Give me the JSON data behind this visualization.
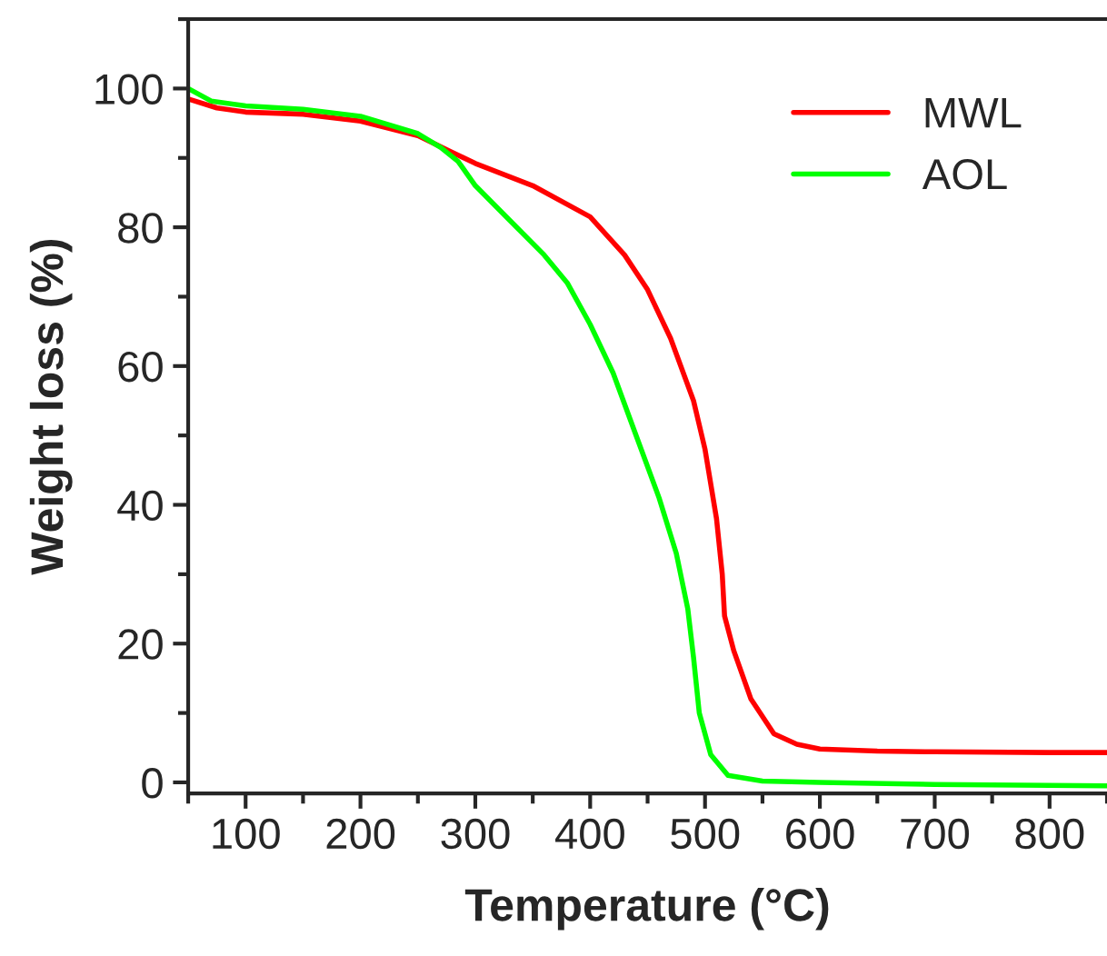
{
  "chart_data": {
    "type": "line",
    "xlabel": "Temperature (°C)",
    "ylabel": "Weight loss (%)",
    "xlim": [
      50,
      850
    ],
    "ylim": [
      -1.6,
      110
    ],
    "xticks": [
      100,
      200,
      300,
      400,
      500,
      600,
      700,
      800
    ],
    "yticks": [
      0,
      20,
      40,
      60,
      80,
      100
    ],
    "grid": false,
    "legend": "top right",
    "marker": "none",
    "line_style": "solid",
    "series": [
      {
        "name": "MWL",
        "color": "#ff0000",
        "x": [
          50,
          75,
          100,
          150,
          200,
          250,
          280,
          300,
          350,
          400,
          430,
          450,
          470,
          490,
          500,
          510,
          515,
          517,
          525,
          540,
          560,
          580,
          600,
          650,
          700,
          800,
          850
        ],
        "values": [
          98.5,
          97.2,
          96.6,
          96.3,
          95.3,
          93.2,
          90.8,
          89.2,
          86.0,
          81.5,
          76,
          71,
          64,
          55,
          48,
          38,
          30,
          24,
          19,
          12,
          7,
          5.5,
          4.8,
          4.5,
          4.4,
          4.3,
          4.3
        ]
      },
      {
        "name": "AOL",
        "color": "#00ff00",
        "x": [
          50,
          70,
          100,
          150,
          200,
          250,
          270,
          285,
          300,
          330,
          360,
          380,
          400,
          420,
          440,
          460,
          475,
          485,
          490,
          495,
          505,
          520,
          550,
          600,
          700,
          850
        ],
        "values": [
          100,
          98.2,
          97.5,
          97.0,
          96.0,
          93.5,
          91.5,
          89.5,
          86,
          81,
          76,
          72,
          66,
          59,
          50,
          41,
          33,
          25,
          18,
          10,
          4,
          1,
          0.2,
          0,
          -0.3,
          -0.5
        ]
      }
    ]
  }
}
